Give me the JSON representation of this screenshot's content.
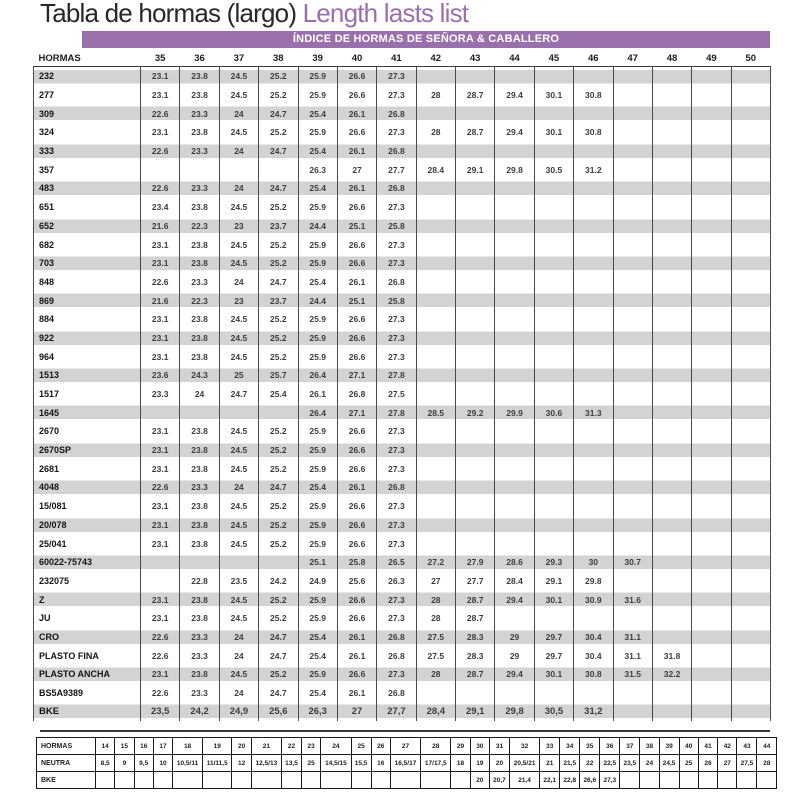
{
  "title": {
    "main": "Tabla de hormas (largo) ",
    "accent": "Length lasts list"
  },
  "banner": "ÍNDICE DE HORMAS DE SEÑORA & CABALLERO",
  "colors": {
    "accent_purple": "#9b6fae",
    "banner_bg": "#9a70ac",
    "stripe_gray": "#d2d3d4"
  },
  "main_table": {
    "label_header": "HORMAS",
    "size_headers": [
      "35",
      "36",
      "37",
      "38",
      "39",
      "40",
      "41",
      "42",
      "43",
      "44",
      "45",
      "46",
      "47",
      "48",
      "49",
      "50"
    ],
    "rows": [
      {
        "label": "232",
        "values": [
          "23.1",
          "23.8",
          "24.5",
          "25.2",
          "25.9",
          "26.6",
          "27.3"
        ]
      },
      {
        "label": "277",
        "values": [
          "23.1",
          "23.8",
          "24.5",
          "25.2",
          "25.9",
          "26.6",
          "27.3",
          "28",
          "28.7",
          "29.4",
          "30.1",
          "30.8"
        ]
      },
      {
        "label": "309",
        "values": [
          "22.6",
          "23.3",
          "24",
          "24.7",
          "25.4",
          "26.1",
          "26.8"
        ]
      },
      {
        "label": "324",
        "values": [
          "23.1",
          "23.8",
          "24.5",
          "25.2",
          "25.9",
          "26.6",
          "27.3",
          "28",
          "28.7",
          "29.4",
          "30.1",
          "30.8"
        ]
      },
      {
        "label": "333",
        "values": [
          "22.6",
          "23.3",
          "24",
          "24.7",
          "25.4",
          "26.1",
          "26.8"
        ]
      },
      {
        "label": "357",
        "values": [
          "",
          "",
          "",
          "",
          "26.3",
          "27",
          "27.7",
          "28.4",
          "29.1",
          "29.8",
          "30.5",
          "31.2"
        ]
      },
      {
        "label": "483",
        "values": [
          "22.6",
          "23.3",
          "24",
          "24.7",
          "25.4",
          "26.1",
          "26.8"
        ]
      },
      {
        "label": "651",
        "values": [
          "23.4",
          "23.8",
          "24.5",
          "25.2",
          "25.9",
          "26.6",
          "27.3"
        ]
      },
      {
        "label": "652",
        "values": [
          "21.6",
          "22.3",
          "23",
          "23.7",
          "24.4",
          "25.1",
          "25.8"
        ]
      },
      {
        "label": "682",
        "values": [
          "23.1",
          "23.8",
          "24.5",
          "25.2",
          "25.9",
          "26.6",
          "27.3"
        ]
      },
      {
        "label": "703",
        "values": [
          "23.1",
          "23.8",
          "24.5",
          "25.2",
          "25.9",
          "26.6",
          "27.3"
        ]
      },
      {
        "label": "848",
        "values": [
          "22.6",
          "23.3",
          "24",
          "24.7",
          "25.4",
          "26.1",
          "26.8"
        ]
      },
      {
        "label": "869",
        "values": [
          "21.6",
          "22.3",
          "23",
          "23.7",
          "24.4",
          "25.1",
          "25.8"
        ]
      },
      {
        "label": "884",
        "values": [
          "23.1",
          "23.8",
          "24.5",
          "25.2",
          "25.9",
          "26.6",
          "27.3"
        ]
      },
      {
        "label": "922",
        "values": [
          "23.1",
          "23.8",
          "24.5",
          "25.2",
          "25.9",
          "26.6",
          "27.3"
        ]
      },
      {
        "label": "964",
        "values": [
          "23.1",
          "23.8",
          "24.5",
          "25.2",
          "25.9",
          "26.6",
          "27.3"
        ]
      },
      {
        "label": "1513",
        "values": [
          "23.6",
          "24.3",
          "25",
          "25.7",
          "26.4",
          "27.1",
          "27.8"
        ]
      },
      {
        "label": "1517",
        "values": [
          "23.3",
          "24",
          "24.7",
          "25.4",
          "26.1",
          "26.8",
          "27.5"
        ]
      },
      {
        "label": "1645",
        "values": [
          "",
          "",
          "",
          "",
          "26.4",
          "27.1",
          "27.8",
          "28.5",
          "29.2",
          "29.9",
          "30.6",
          "31.3"
        ]
      },
      {
        "label": "2670",
        "values": [
          "23.1",
          "23.8",
          "24.5",
          "25.2",
          "25.9",
          "26.6",
          "27.3"
        ]
      },
      {
        "label": "2670SP",
        "values": [
          "23.1",
          "23.8",
          "24.5",
          "25.2",
          "25.9",
          "26.6",
          "27.3"
        ]
      },
      {
        "label": "2681",
        "values": [
          "23.1",
          "23.8",
          "24.5",
          "25.2",
          "25.9",
          "26.6",
          "27.3"
        ]
      },
      {
        "label": "4048",
        "values": [
          "22.6",
          "23.3",
          "24",
          "24.7",
          "25.4",
          "26.1",
          "26.8"
        ]
      },
      {
        "label": "15/081",
        "values": [
          "23.1",
          "23.8",
          "24.5",
          "25.2",
          "25.9",
          "26.6",
          "27.3"
        ]
      },
      {
        "label": "20/078",
        "values": [
          "23.1",
          "23.8",
          "24.5",
          "25.2",
          "25.9",
          "26.6",
          "27.3"
        ]
      },
      {
        "label": "25/041",
        "values": [
          "23.1",
          "23.8",
          "24.5",
          "25.2",
          "25.9",
          "26.6",
          "27.3"
        ]
      },
      {
        "label": "60022-75743",
        "values": [
          "",
          "",
          "",
          "",
          "25.1",
          "25.8",
          "26.5",
          "27.2",
          "27.9",
          "28.6",
          "29.3",
          "30",
          "30.7"
        ]
      },
      {
        "label": "232075",
        "values": [
          "",
          "22.8",
          "23.5",
          "24.2",
          "24.9",
          "25.6",
          "26.3",
          "27",
          "27.7",
          "28.4",
          "29.1",
          "29.8"
        ]
      },
      {
        "label": "Z",
        "values": [
          "23.1",
          "23.8",
          "24.5",
          "25.2",
          "25.9",
          "26.6",
          "27.3",
          "28",
          "28.7",
          "29.4",
          "30.1",
          "30.9",
          "31.6"
        ]
      },
      {
        "label": "JU",
        "values": [
          "23.1",
          "23.8",
          "24.5",
          "25.2",
          "25.9",
          "26.6",
          "27.3",
          "28",
          "28.7"
        ]
      },
      {
        "label": "CRO",
        "values": [
          "22.6",
          "23.3",
          "24",
          "24.7",
          "25.4",
          "26.1",
          "26.8",
          "27.5",
          "28.3",
          "29",
          "29.7",
          "30.4",
          "31.1"
        ]
      },
      {
        "label": "PLASTO FINA",
        "values": [
          "22.6",
          "23.3",
          "24",
          "24.7",
          "25.4",
          "26.1",
          "26.8",
          "27.5",
          "28.3",
          "29",
          "29.7",
          "30.4",
          "31.1",
          "31.8"
        ]
      },
      {
        "label": "PLASTO ANCHA",
        "values": [
          "23.1",
          "23.8",
          "24.5",
          "25.2",
          "25.9",
          "26.6",
          "27.3",
          "28",
          "28.7",
          "29.4",
          "30.1",
          "30.8",
          "31.5",
          "32.2"
        ]
      },
      {
        "label": "BS5A9389",
        "values": [
          "22.6",
          "23.3",
          "24",
          "24.7",
          "25.4",
          "26.1",
          "26.8"
        ]
      },
      {
        "label": "BKE",
        "values": [
          "23,5",
          "24,2",
          "24,9",
          "25,6",
          "26,3",
          "27",
          "27,7",
          "28,4",
          "29,1",
          "29,8",
          "30,5",
          "31,2"
        ]
      }
    ]
  },
  "bottom_table": {
    "rows": [
      {
        "label": "HORMAS",
        "values": [
          "14",
          "15",
          "16",
          "17",
          "18",
          "19",
          "20",
          "21",
          "22",
          "23",
          "24",
          "25",
          "26",
          "27",
          "28",
          "29",
          "30",
          "31",
          "32",
          "33",
          "34",
          "35",
          "36",
          "37",
          "38",
          "39",
          "40",
          "41",
          "42",
          "43",
          "44"
        ]
      },
      {
        "label": "NEUTRA",
        "values": [
          "8,5",
          "9",
          "9,5",
          "10",
          "10,5/11",
          "11/11,5",
          "12",
          "12,5/13",
          "13,5",
          "25",
          "14,5/15",
          "15,5",
          "16",
          "16,5/17",
          "17/17,5",
          "18",
          "19",
          "20",
          "20,5/21",
          "21",
          "21,5",
          "22",
          "22,5",
          "23,5",
          "24",
          "24,5",
          "25",
          "26",
          "27",
          "27,5",
          "28"
        ]
      },
      {
        "label": "BKE",
        "values": [
          "",
          "",
          "",
          "",
          "",
          "",
          "",
          "",
          "",
          "",
          "",
          "",
          "",
          "",
          "",
          "",
          "20",
          "20,7",
          "21,4",
          "22,1",
          "22,8",
          "26,6",
          "27,3",
          "",
          "",
          "",
          "",
          "",
          "",
          "",
          ""
        ]
      }
    ]
  }
}
